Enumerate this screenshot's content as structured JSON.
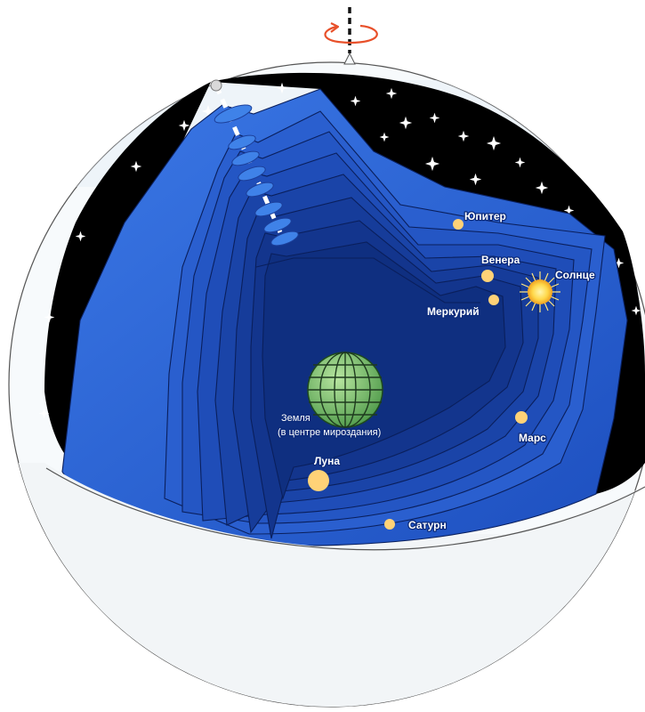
{
  "diagram": {
    "colors": {
      "sky": "#000000",
      "sphere_outer": "#2e67d8",
      "sphere_inner": "#0f2f86",
      "planet": "#ffd277",
      "sun": "#ffd84a",
      "earth": "#7fbf6a",
      "axis_arrow": "#e8502a",
      "background": "#ffffff"
    },
    "rotation_indicator": "rotation-arrow-icon",
    "bodies": {
      "jupiter": {
        "label": "Юпитер"
      },
      "venus": {
        "label": "Венера"
      },
      "sun": {
        "label": "Солнце"
      },
      "mercury": {
        "label": "Меркурий"
      },
      "earth": {
        "label_line1": "Земля",
        "label_line2": "(в центре мироздания)"
      },
      "mars": {
        "label": "Марс"
      },
      "moon": {
        "label": "Луна"
      },
      "saturn": {
        "label": "Сатурн"
      }
    }
  }
}
